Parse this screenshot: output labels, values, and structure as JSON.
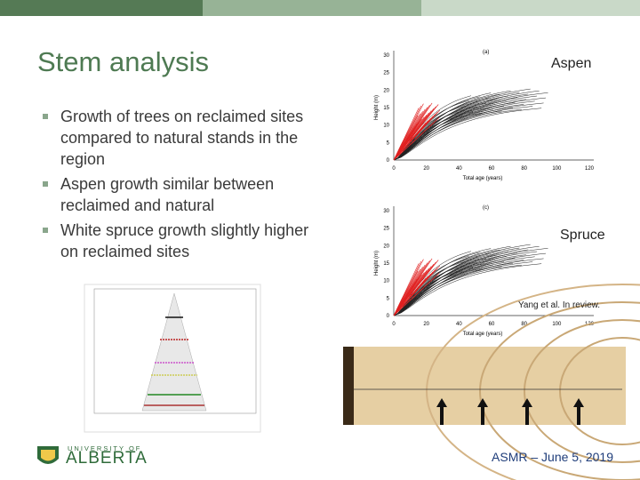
{
  "header": {
    "title": "Stem analysis"
  },
  "bullets": [
    "Growth of trees on reclaimed sites compared to natural stands in the region",
    "Aspen growth similar between reclaimed and natural",
    "White spruce growth slightly higher on reclaimed sites"
  ],
  "figures": [
    {
      "label": "Aspen",
      "panel": "(a)",
      "x_label": "Total age (years)",
      "y_label": "Height (m)",
      "xticks": [
        "0",
        "20",
        "40",
        "60",
        "80",
        "100",
        "120"
      ],
      "yticks": [
        "0",
        "5",
        "10",
        "15",
        "20",
        "25",
        "30"
      ]
    },
    {
      "label": "Spruce",
      "panel": "(c)",
      "x_label": "Total age (years)",
      "y_label": "Height (m)",
      "xticks": [
        "0",
        "20",
        "40",
        "60",
        "80",
        "100",
        "120"
      ],
      "yticks": [
        "0",
        "5",
        "10",
        "15",
        "20",
        "25",
        "30"
      ]
    }
  ],
  "citation": "Yang et al. In review.",
  "logo": {
    "line1": "UNIVERSITY OF",
    "line2": "ALBERTA"
  },
  "footer": "ASMR – June 5, 2019"
}
